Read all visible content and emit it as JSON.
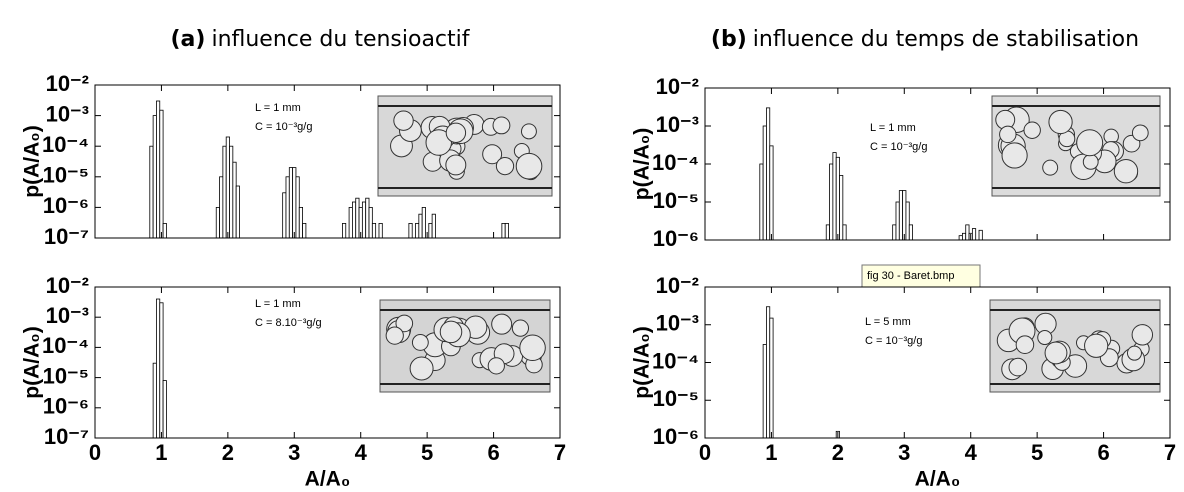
{
  "tooltip": "fig 30 - Baret.bmp",
  "chart_data": [
    {
      "type": "bar",
      "panel": "(a)",
      "title": "influence du tensioactif",
      "ylabel": "p(A/A₀)",
      "annotations": [
        "L = 1 mm",
        "C = 10⁻³g/g"
      ],
      "log_y": true,
      "color": "#ffffff",
      "show_xtick_labels": false,
      "x": [
        0.85,
        0.9,
        0.95,
        1.0,
        1.05,
        1.85,
        1.9,
        1.95,
        2.0,
        2.05,
        2.1,
        2.15,
        2.85,
        2.9,
        2.95,
        3.0,
        3.05,
        3.1,
        3.15,
        3.75,
        3.85,
        3.9,
        3.95,
        4.0,
        4.05,
        4.1,
        4.15,
        4.2,
        4.3,
        4.75,
        4.85,
        4.9,
        4.95,
        5.05,
        5.1,
        6.15,
        6.2
      ],
      "values": [
        0.0001,
        0.001,
        0.003,
        0.0015,
        3e-07,
        1e-06,
        1e-05,
        0.0001,
        0.0002,
        0.0001,
        3e-05,
        5e-06,
        3e-06,
        1e-05,
        2e-05,
        2e-05,
        1e-05,
        1e-06,
        3e-07,
        3e-07,
        1e-06,
        1.5e-06,
        2e-06,
        1e-06,
        1.5e-06,
        2e-06,
        1e-06,
        3e-07,
        3e-07,
        3e-07,
        3e-07,
        6e-07,
        1e-06,
        3e-07,
        6e-07,
        3e-07,
        3e-07
      ],
      "xlim": [
        0,
        7
      ],
      "xticks": [
        0,
        1,
        2,
        3,
        4,
        5,
        6,
        7
      ],
      "ylim": [
        1e-07,
        0.01
      ],
      "yticks": [
        {
          "value": 1e-07,
          "label": "10⁻⁷"
        },
        {
          "value": 1e-06,
          "label": "10⁻⁶"
        },
        {
          "value": 1e-05,
          "label": "10⁻⁵"
        },
        {
          "value": 0.0001,
          "label": "10⁻⁴"
        },
        {
          "value": 0.001,
          "label": "10⁻³"
        },
        {
          "value": 0.01,
          "label": "10⁻²"
        }
      ]
    },
    {
      "type": "bar",
      "xlabel": "A/A₀",
      "ylabel": "p(A/A₀)",
      "annotations": [
        "L = 1 mm",
        "C = 8.10⁻³g/g"
      ],
      "log_y": true,
      "color": "#ffffff",
      "show_xtick_labels": true,
      "x": [
        0.9,
        0.95,
        1.0,
        1.05
      ],
      "values": [
        3e-05,
        0.004,
        0.003,
        8e-06
      ],
      "xlim": [
        0,
        7
      ],
      "xticks": [
        0,
        1,
        2,
        3,
        4,
        5,
        6,
        7
      ],
      "ylim": [
        1e-07,
        0.01
      ],
      "yticks": [
        {
          "value": 1e-07,
          "label": "10⁻⁷"
        },
        {
          "value": 1e-06,
          "label": "10⁻⁶"
        },
        {
          "value": 1e-05,
          "label": "10⁻⁵"
        },
        {
          "value": 0.0001,
          "label": "10⁻⁴"
        },
        {
          "value": 0.001,
          "label": "10⁻³"
        },
        {
          "value": 0.01,
          "label": "10⁻²"
        }
      ]
    },
    {
      "type": "bar",
      "panel": "(b)",
      "title": "influence du temps de stabilisation",
      "ylabel": "p(A/A₀)",
      "annotations": [
        "L = 1 mm",
        "C = 10⁻³g/g"
      ],
      "log_y": true,
      "color": "#ffffff",
      "show_xtick_labels": false,
      "x": [
        0.85,
        0.9,
        0.95,
        1.0,
        1.85,
        1.9,
        1.95,
        2.0,
        2.05,
        2.1,
        2.85,
        2.9,
        2.95,
        3.0,
        3.05,
        3.1,
        3.85,
        3.9,
        3.95,
        4.0,
        4.05,
        4.15
      ],
      "values": [
        0.0001,
        0.001,
        0.003,
        0.0003,
        2.5e-06,
        0.0001,
        0.0002,
        0.00015,
        5e-05,
        2.5e-06,
        2.5e-06,
        1e-05,
        2e-05,
        2e-05,
        1e-05,
        2.5e-06,
        1.3e-06,
        1.5e-06,
        2.5e-06,
        1.5e-06,
        2e-06,
        1.8e-06
      ],
      "xlim": [
        0,
        7
      ],
      "xticks": [
        0,
        1,
        2,
        3,
        4,
        5,
        6,
        7
      ],
      "ylim": [
        1e-06,
        0.01
      ],
      "yticks": [
        {
          "value": 1e-06,
          "label": "10⁻⁶"
        },
        {
          "value": 1e-05,
          "label": "10⁻⁵"
        },
        {
          "value": 0.0001,
          "label": "10⁻⁴"
        },
        {
          "value": 0.001,
          "label": "10⁻³"
        },
        {
          "value": 0.01,
          "label": "10⁻²"
        }
      ]
    },
    {
      "type": "bar",
      "xlabel": "A/A₀",
      "ylabel": "p(A/A₀)",
      "annotations": [
        "L = 5 mm",
        "C = 10⁻³g/g"
      ],
      "log_y": true,
      "color": "#ffffff",
      "show_xtick_labels": true,
      "x": [
        0.9,
        0.95,
        1.0,
        2.0
      ],
      "values": [
        0.0003,
        0.003,
        0.0015,
        1.5e-06
      ],
      "xlim": [
        0,
        7
      ],
      "xticks": [
        0,
        1,
        2,
        3,
        4,
        5,
        6,
        7
      ],
      "ylim": [
        1e-06,
        0.01
      ],
      "yticks": [
        {
          "value": 1e-06,
          "label": "10⁻⁶"
        },
        {
          "value": 1e-05,
          "label": "10⁻⁵"
        },
        {
          "value": 0.0001,
          "label": "10⁻⁴"
        },
        {
          "value": 0.001,
          "label": "10⁻³"
        },
        {
          "value": 0.01,
          "label": "10⁻²"
        }
      ]
    }
  ]
}
